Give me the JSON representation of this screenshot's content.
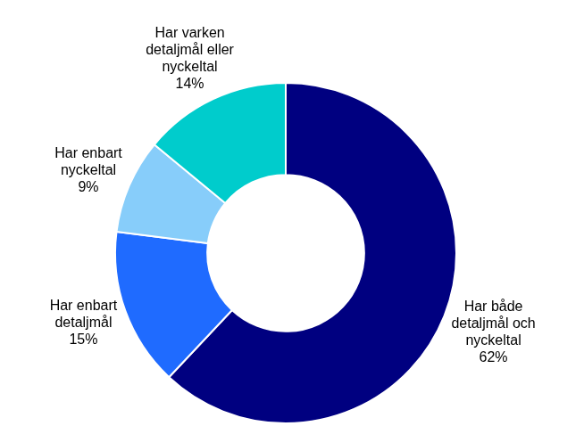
{
  "chart_data": {
    "type": "doughnut",
    "categories": [
      "Har både detaljmål och nyckeltal",
      "Har enbart detaljmål",
      "Har enbart nyckeltal",
      "Har varken detaljmål eller nyckeltal"
    ],
    "values": [
      62,
      15,
      9,
      14
    ],
    "value_labels": [
      "62%",
      "15%",
      "9%",
      "14%"
    ],
    "colors": [
      "#000080",
      "#1f6bff",
      "#87cdfa",
      "#00cccc"
    ],
    "data_labels": true
  }
}
